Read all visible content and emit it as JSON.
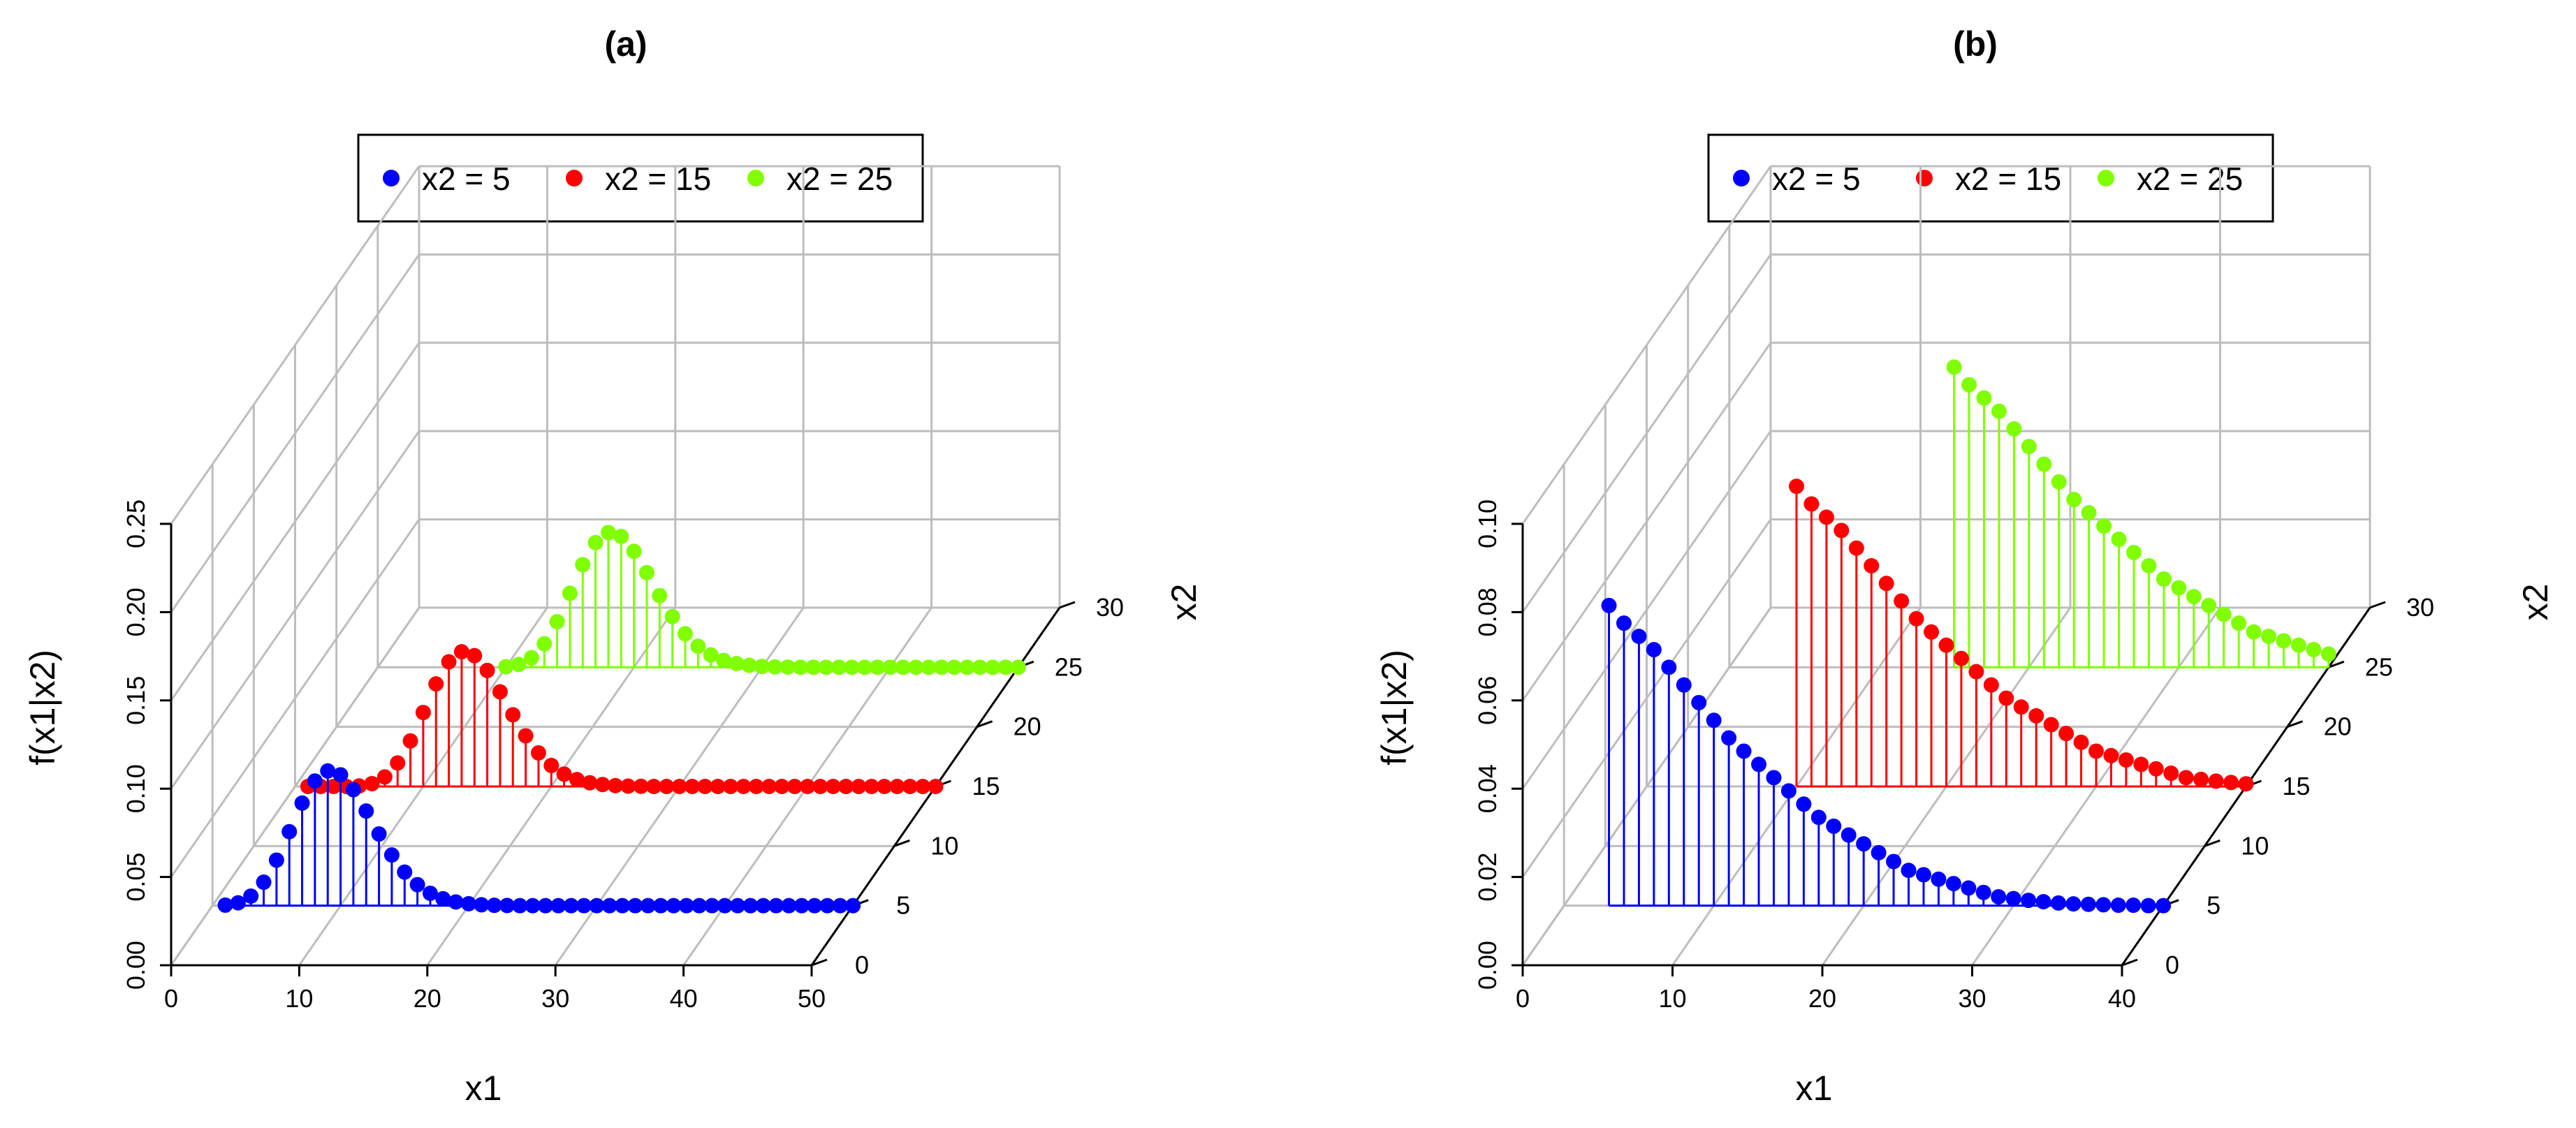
{
  "chart_data": [
    {
      "type": "scatter3d-stem",
      "title": "(a)",
      "xlabel": "x1",
      "ylabel": "x2",
      "zlabel": "f(x1|x2)",
      "xlim": [
        0,
        50
      ],
      "ylim": [
        0,
        30
      ],
      "zlim": [
        0,
        0.25
      ],
      "xticks": [
        "0",
        "10",
        "20",
        "30",
        "40",
        "50"
      ],
      "yticks": [
        "0",
        "5",
        "10",
        "15",
        "20",
        "25",
        "30"
      ],
      "zticks": [
        "0.00",
        "0.05",
        "0.10",
        "0.15",
        "0.20",
        "0.25"
      ],
      "grid": true,
      "legend": {
        "position": "top",
        "entries": [
          {
            "label": "x2 =   5",
            "color": "#0000ff"
          },
          {
            "label": "x2 = 15",
            "color": "#ff0000"
          },
          {
            "label": "x2 = 25",
            "color": "#80ff00"
          }
        ]
      },
      "series": [
        {
          "name": "x2 = 5",
          "x2": 5,
          "color": "#0000ff",
          "x": [
            1,
            2,
            3,
            4,
            5,
            6,
            7,
            8,
            9,
            10,
            11,
            12,
            13,
            14,
            15,
            16,
            17,
            18,
            19,
            20,
            21,
            22,
            23,
            24,
            25,
            26,
            27,
            28,
            29,
            30,
            31,
            32,
            33,
            34,
            35,
            36,
            37,
            38,
            39,
            40,
            41,
            42,
            43,
            44,
            45,
            46,
            47,
            48,
            49,
            50
          ],
          "values": [
            0.0003,
            0.0016,
            0.0054,
            0.0133,
            0.0258,
            0.0419,
            0.0581,
            0.0706,
            0.0763,
            0.0741,
            0.0657,
            0.0536,
            0.0406,
            0.0287,
            0.019,
            0.0119,
            0.007,
            0.0039,
            0.0021,
            0.0011,
            0.0005,
            0.0002,
            0.0001,
            0,
            0,
            0,
            0,
            0,
            0,
            0,
            0,
            0,
            0,
            0,
            0,
            0,
            0,
            0,
            0,
            0,
            0,
            0,
            0,
            0,
            0,
            0,
            0,
            0,
            0,
            0
          ]
        },
        {
          "name": "x2 = 15",
          "x2": 15,
          "color": "#ff0000",
          "x": [
            1,
            2,
            3,
            4,
            5,
            6,
            7,
            8,
            9,
            10,
            11,
            12,
            13,
            14,
            15,
            16,
            17,
            18,
            19,
            20,
            21,
            22,
            23,
            24,
            25,
            26,
            27,
            28,
            29,
            30,
            31,
            32,
            33,
            34,
            35,
            36,
            37,
            38,
            39,
            40,
            41,
            42,
            43,
            44,
            45,
            46,
            47,
            48,
            49,
            50
          ],
          "values": [
            0,
            0,
            0,
            0,
            0.0003,
            0.0016,
            0.0054,
            0.0133,
            0.0258,
            0.0419,
            0.0581,
            0.0706,
            0.0763,
            0.0741,
            0.0657,
            0.0536,
            0.0406,
            0.0287,
            0.019,
            0.0119,
            0.007,
            0.0039,
            0.0021,
            0.0011,
            0.0005,
            0.0002,
            0.0001,
            0,
            0,
            0,
            0,
            0,
            0,
            0,
            0,
            0,
            0,
            0,
            0,
            0,
            0,
            0,
            0,
            0,
            0,
            0,
            0,
            0,
            0,
            0
          ]
        },
        {
          "name": "x2 = 25",
          "x2": 25,
          "color": "#80ff00",
          "x": [
            10,
            11,
            12,
            13,
            14,
            15,
            16,
            17,
            18,
            19,
            20,
            21,
            22,
            23,
            24,
            25,
            26,
            27,
            28,
            29,
            30,
            31,
            32,
            33,
            34,
            35,
            36,
            37,
            38,
            39,
            40,
            41,
            42,
            43,
            44,
            45,
            46,
            47,
            48,
            49,
            50
          ],
          "values": [
            0.0003,
            0.0016,
            0.0054,
            0.0133,
            0.0258,
            0.0419,
            0.0581,
            0.0706,
            0.0763,
            0.0741,
            0.0657,
            0.0536,
            0.0406,
            0.0287,
            0.019,
            0.0119,
            0.007,
            0.0039,
            0.0021,
            0.0011,
            0.0005,
            0.0002,
            0.0001,
            0,
            0,
            0,
            0,
            0,
            0,
            0,
            0,
            0,
            0,
            0,
            0,
            0,
            0,
            0,
            0,
            0,
            0
          ]
        }
      ]
    },
    {
      "type": "scatter3d-stem",
      "title": "(b)",
      "xlabel": "x1",
      "ylabel": "x2",
      "zlabel": "f(x1|x2)",
      "xlim": [
        0,
        40
      ],
      "ylim": [
        0,
        30
      ],
      "zlim": [
        0,
        0.1
      ],
      "xticks": [
        "0",
        "10",
        "20",
        "30",
        "40"
      ],
      "yticks": [
        "0",
        "5",
        "10",
        "15",
        "20",
        "25",
        "30"
      ],
      "zticks": [
        "0.00",
        "0.02",
        "0.04",
        "0.06",
        "0.08",
        "0.10"
      ],
      "grid": true,
      "legend": {
        "position": "top",
        "entries": [
          {
            "label": "x2 =   5",
            "color": "#0000ff"
          },
          {
            "label": "x2 = 15",
            "color": "#ff0000"
          },
          {
            "label": "x2 = 25",
            "color": "#80ff00"
          }
        ]
      },
      "series": [
        {
          "name": "x2 = 5",
          "x2": 5,
          "color": "#0000ff",
          "x": [
            3,
            4,
            5,
            6,
            7,
            8,
            9,
            10,
            11,
            12,
            13,
            14,
            15,
            16,
            17,
            18,
            19,
            20,
            21,
            22,
            23,
            24,
            25,
            26,
            27,
            28,
            29,
            30,
            31,
            32,
            33,
            34,
            35,
            36,
            37,
            38,
            39,
            40
          ],
          "values": [
            0.068,
            0.064,
            0.061,
            0.058,
            0.054,
            0.05,
            0.046,
            0.042,
            0.038,
            0.035,
            0.032,
            0.029,
            0.026,
            0.023,
            0.02,
            0.018,
            0.016,
            0.014,
            0.012,
            0.01,
            0.008,
            0.007,
            0.006,
            0.005,
            0.004,
            0.003,
            0.002,
            0.0016,
            0.0012,
            0.0009,
            0.0006,
            0.0004,
            0.0003,
            0.0002,
            0.0001,
            0.0001,
            0,
            0
          ]
        },
        {
          "name": "x2 = 15",
          "x2": 15,
          "color": "#ff0000",
          "x": [
            10,
            11,
            12,
            13,
            14,
            15,
            16,
            17,
            18,
            19,
            20,
            21,
            22,
            23,
            24,
            25,
            26,
            27,
            28,
            29,
            30,
            31,
            32,
            33,
            34,
            35,
            36,
            37,
            38,
            39,
            40
          ],
          "values": [
            0.068,
            0.064,
            0.061,
            0.058,
            0.054,
            0.05,
            0.046,
            0.042,
            0.038,
            0.035,
            0.032,
            0.029,
            0.026,
            0.023,
            0.02,
            0.018,
            0.016,
            0.014,
            0.012,
            0.01,
            0.008,
            0.007,
            0.006,
            0.005,
            0.004,
            0.003,
            0.002,
            0.0016,
            0.0012,
            0.0009,
            0.0006
          ]
        },
        {
          "name": "x2 = 25",
          "x2": 25,
          "color": "#80ff00",
          "x": [
            15,
            16,
            17,
            18,
            19,
            20,
            21,
            22,
            23,
            24,
            25,
            26,
            27,
            28,
            29,
            30,
            31,
            32,
            33,
            34,
            35,
            36,
            37,
            38,
            39,
            40
          ],
          "values": [
            0.068,
            0.064,
            0.061,
            0.058,
            0.054,
            0.05,
            0.046,
            0.042,
            0.038,
            0.035,
            0.032,
            0.029,
            0.026,
            0.023,
            0.02,
            0.018,
            0.016,
            0.014,
            0.012,
            0.01,
            0.008,
            0.007,
            0.006,
            0.005,
            0.004,
            0.003
          ]
        }
      ]
    }
  ]
}
